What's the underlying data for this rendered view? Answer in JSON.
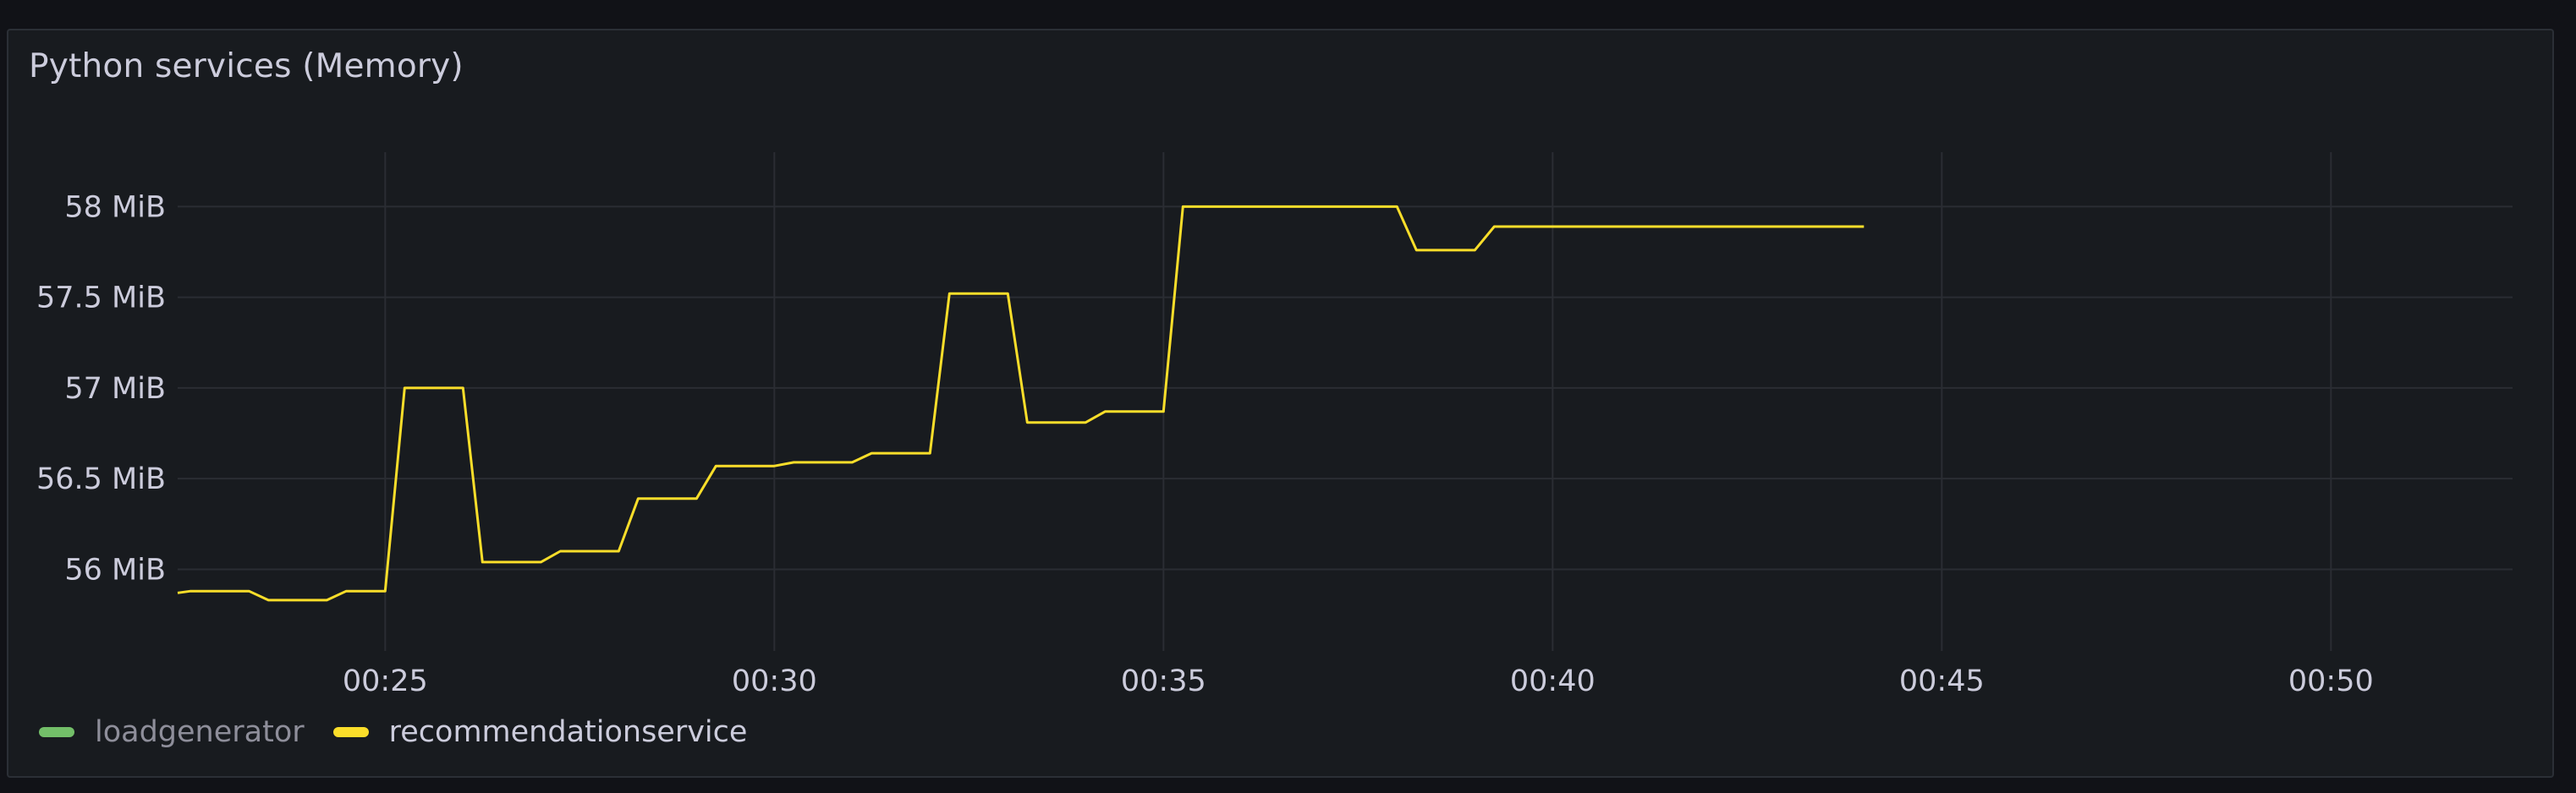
{
  "panel": {
    "title": "Python services (Memory)"
  },
  "colors": {
    "background": "#111217",
    "panel": "#181b1f",
    "grid": "#2a2d33",
    "text": "#ccccdc",
    "muted_text": "#8e8e9a"
  },
  "chart_data": {
    "type": "line",
    "title": "Python services (Memory)",
    "xlabel": "",
    "ylabel": "",
    "x_unit": "time (HH:MM)",
    "y_unit": "MiB",
    "xlim": [
      "00:22:20",
      "00:52:20"
    ],
    "ylim": [
      55.55,
      58.3
    ],
    "x_ticks": [
      "00:25",
      "00:30",
      "00:35",
      "00:40",
      "00:45",
      "00:50"
    ],
    "y_ticks": [
      {
        "value": 56,
        "label": "56 MiB"
      },
      {
        "value": 56.5,
        "label": "56.5 MiB"
      },
      {
        "value": 57,
        "label": "57 MiB"
      },
      {
        "value": 57.5,
        "label": "57.5 MiB"
      },
      {
        "value": 58,
        "label": "58 MiB"
      }
    ],
    "grid": true,
    "legend_position": "bottom-left",
    "series": [
      {
        "name": "loadgenerator",
        "color": "#73bf69",
        "hidden": true,
        "points": []
      },
      {
        "name": "recommendationservice",
        "color": "#fade2a",
        "hidden": false,
        "points": [
          [
            "00:22:20",
            55.87
          ],
          [
            "00:22:30",
            55.88
          ],
          [
            "00:23:15",
            55.88
          ],
          [
            "00:23:30",
            55.83
          ],
          [
            "00:24:15",
            55.83
          ],
          [
            "00:24:30",
            55.88
          ],
          [
            "00:25:00",
            55.88
          ],
          [
            "00:25:15",
            57.0
          ],
          [
            "00:26:00",
            57.0
          ],
          [
            "00:26:15",
            56.04
          ],
          [
            "00:27:00",
            56.04
          ],
          [
            "00:27:15",
            56.1
          ],
          [
            "00:28:00",
            56.1
          ],
          [
            "00:28:15",
            56.39
          ],
          [
            "00:29:00",
            56.39
          ],
          [
            "00:29:15",
            56.57
          ],
          [
            "00:30:00",
            56.57
          ],
          [
            "00:30:15",
            56.59
          ],
          [
            "00:31:00",
            56.59
          ],
          [
            "00:31:15",
            56.64
          ],
          [
            "00:32:00",
            56.64
          ],
          [
            "00:32:15",
            57.52
          ],
          [
            "00:33:00",
            57.52
          ],
          [
            "00:33:15",
            56.81
          ],
          [
            "00:34:00",
            56.81
          ],
          [
            "00:34:15",
            56.87
          ],
          [
            "00:35:00",
            56.87
          ],
          [
            "00:35:15",
            58.0
          ],
          [
            "00:38:00",
            58.0
          ],
          [
            "00:38:15",
            57.76
          ],
          [
            "00:39:00",
            57.76
          ],
          [
            "00:39:15",
            57.89
          ],
          [
            "00:44:00",
            57.89
          ]
        ]
      }
    ]
  }
}
